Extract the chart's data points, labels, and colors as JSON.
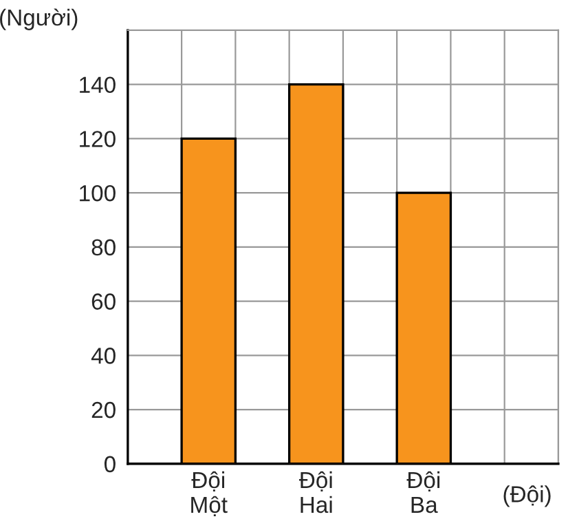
{
  "chart_data": {
    "type": "bar",
    "xlabel": "(Đội)",
    "ylabel": "(Người)",
    "categories": [
      "Đội\nMột",
      "Đội\nHai",
      "Đội\nBa"
    ],
    "values": [
      120,
      140,
      100
    ],
    "color": "#f7941d",
    "ylim": [
      0,
      160
    ],
    "yticks": [
      0,
      20,
      40,
      60,
      80,
      100,
      120,
      140
    ],
    "grid": true,
    "legend": false
  }
}
